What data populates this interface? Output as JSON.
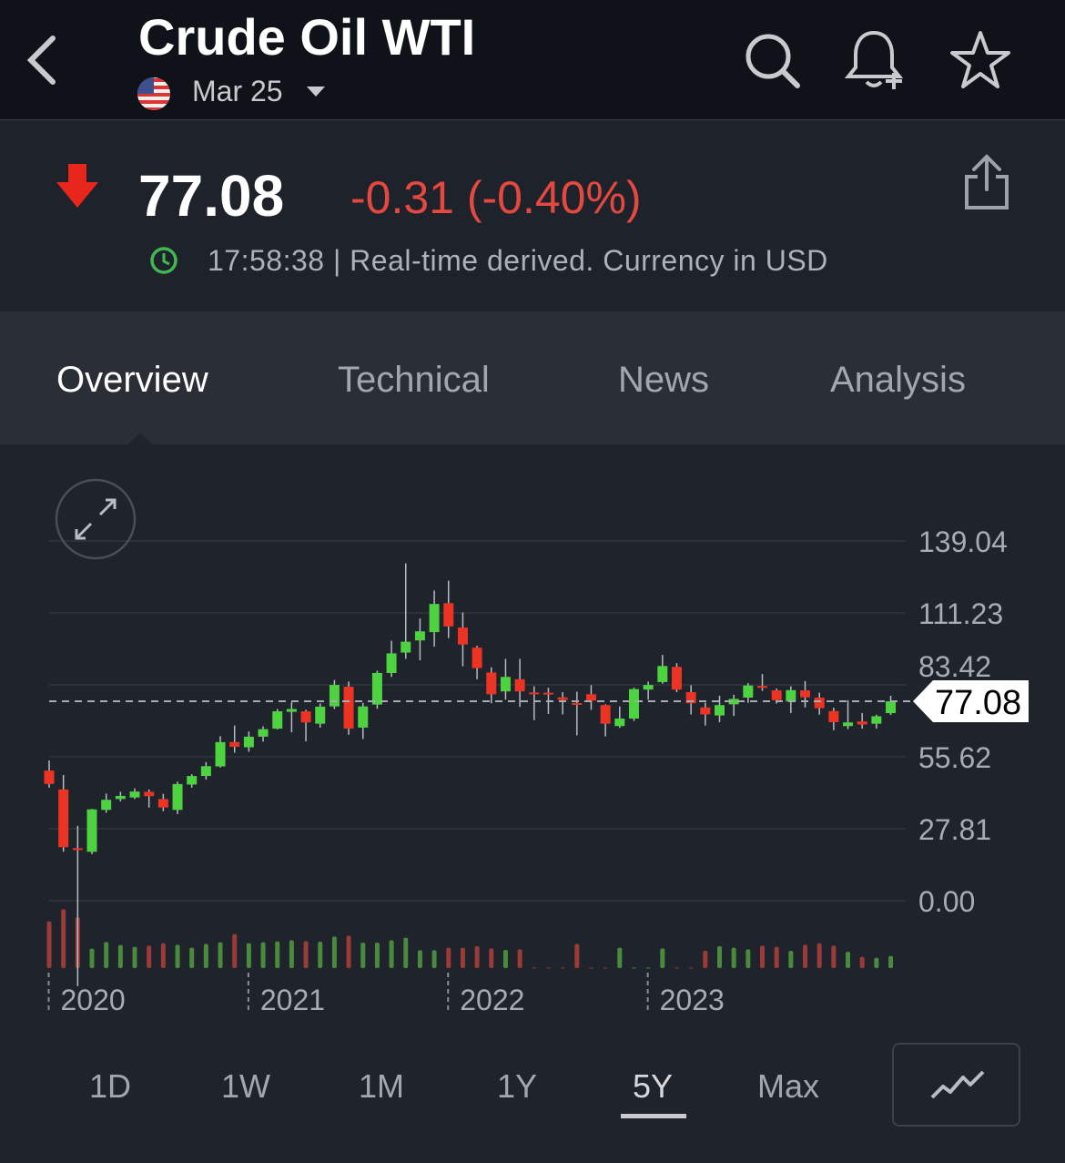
{
  "header": {
    "title": "Crude Oil WTI",
    "contract": "Mar 25",
    "flag_icon": "us-flag-icon",
    "back_icon": "chevron-left-icon",
    "search_icon": "search-icon",
    "alert_icon": "bell-plus-icon",
    "watchlist_icon": "star-icon"
  },
  "quote": {
    "price": "77.08",
    "change": "-0.31 (-0.40%)",
    "direction": "down",
    "time_info": "17:58:38 | Real-time derived. Currency in USD",
    "colors": {
      "down": "#e5483f",
      "clock": "#3fb950"
    }
  },
  "tabs": [
    {
      "label": "Overview",
      "active": true
    },
    {
      "label": "Technical"
    },
    {
      "label": "News"
    },
    {
      "label": "Analysis"
    }
  ],
  "timeframes": [
    {
      "label": "1D"
    },
    {
      "label": "1W"
    },
    {
      "label": "1M"
    },
    {
      "label": "1Y"
    },
    {
      "label": "5Y",
      "active": true
    },
    {
      "label": "Max"
    }
  ],
  "chart_type_icon": "line-chart-icon",
  "expand_icon": "expand-icon",
  "chart_data": {
    "type": "candlestick",
    "y_ticks": [
      "139.04",
      "111.23",
      "83.42",
      "55.62",
      "27.81",
      "0.00"
    ],
    "y_tick_values": [
      139.04,
      111.23,
      83.42,
      55.62,
      27.81,
      0
    ],
    "ylim": [
      0,
      139.04
    ],
    "current_price": 77.08,
    "current_price_label": "77.08",
    "x_ticks": [
      {
        "label": "2020",
        "index": 0
      },
      {
        "label": "2021",
        "index": 14
      },
      {
        "label": "2022",
        "index": 28
      },
      {
        "label": "2023",
        "index": 42
      }
    ],
    "colors": {
      "up": "#4cd33f",
      "down": "#ec3324",
      "vol_up": "#4a8a3c",
      "vol_down": "#9a3b38"
    },
    "grid": true,
    "ohlc": [
      [
        50.3,
        54.2,
        43.7,
        45.1
      ],
      [
        43.0,
        48.6,
        18.9,
        20.7
      ],
      [
        20.3,
        28.9,
        -33,
        19.9
      ],
      [
        18.9,
        35.5,
        18.0,
        35.3
      ],
      [
        35.1,
        41.4,
        34.0,
        39.0
      ],
      [
        39.3,
        42.1,
        38.4,
        40.5
      ],
      [
        39.9,
        43.4,
        39.3,
        42.2
      ],
      [
        42.1,
        43.0,
        36.0,
        40.4
      ],
      [
        39.3,
        41.3,
        34.6,
        36.0
      ],
      [
        35.1,
        46.0,
        33.5,
        45.1
      ],
      [
        44.9,
        48.9,
        43.7,
        48.2
      ],
      [
        48.2,
        53.6,
        46.8,
        52.0
      ],
      [
        51.9,
        63.6,
        51.5,
        61.3
      ],
      [
        61.3,
        67.7,
        57.2,
        59.5
      ],
      [
        59.3,
        65.4,
        57.6,
        63.4
      ],
      [
        63.4,
        67.4,
        61.5,
        66.3
      ],
      [
        66.5,
        74.1,
        66.2,
        73.2
      ],
      [
        73.0,
        76.7,
        65.1,
        74.1
      ],
      [
        73.2,
        73.8,
        61.6,
        68.9
      ],
      [
        68.4,
        76.2,
        66.9,
        75.0
      ],
      [
        75.1,
        85.3,
        74.1,
        83.4
      ],
      [
        82.7,
        84.7,
        64.1,
        66.5
      ],
      [
        66.9,
        76.5,
        62.5,
        75.1
      ],
      [
        75.8,
        88.9,
        74.2,
        88.0
      ],
      [
        88.0,
        100.5,
        86.5,
        95.6
      ],
      [
        95.9,
        130.4,
        93.5,
        100.1
      ],
      [
        100.6,
        109.1,
        92.9,
        104.1
      ],
      [
        103.8,
        119.9,
        98.2,
        114.7
      ],
      [
        115.0,
        123.7,
        101.5,
        106.0
      ],
      [
        105.6,
        111.4,
        90.6,
        99.0
      ],
      [
        97.8,
        98.5,
        85.6,
        89.9
      ],
      [
        88.2,
        90.2,
        76.3,
        79.8
      ],
      [
        80.9,
        93.5,
        77.7,
        86.5
      ],
      [
        85.6,
        93.5,
        74.9,
        80.9
      ],
      [
        80.5,
        82.9,
        69.8,
        80.1
      ],
      [
        80.4,
        82.3,
        72.2,
        80.0
      ],
      [
        78.6,
        80.6,
        72.0,
        77.6
      ],
      [
        76.4,
        80.8,
        63.9,
        76.0
      ],
      [
        79.8,
        83.3,
        73.8,
        77.3
      ],
      [
        75.6,
        75.9,
        63.5,
        68.4
      ],
      [
        67.5,
        75.1,
        66.8,
        70.4
      ],
      [
        70.4,
        82.3,
        69.5,
        81.8
      ],
      [
        81.6,
        84.7,
        77.7,
        83.4
      ],
      [
        84.5,
        95.0,
        83.9,
        90.7
      ],
      [
        90.4,
        91.8,
        80.6,
        81.6
      ],
      [
        80.6,
        83.3,
        72.0,
        76.3
      ],
      [
        74.7,
        76.5,
        67.7,
        72.0
      ],
      [
        71.6,
        79.2,
        69.0,
        75.6
      ],
      [
        75.9,
        79.6,
        71.4,
        78.0
      ],
      [
        78.5,
        84.1,
        76.5,
        83.2
      ],
      [
        83.0,
        87.6,
        81.1,
        82.6
      ],
      [
        81.3,
        82.0,
        76.2,
        77.5
      ],
      [
        77.0,
        82.9,
        72.5,
        81.4
      ],
      [
        81.3,
        84.9,
        74.7,
        78.6
      ],
      [
        78.5,
        80.4,
        71.9,
        74.4
      ],
      [
        73.3,
        74.6,
        65.9,
        69.0
      ],
      [
        67.5,
        77.5,
        66.3,
        68.9
      ],
      [
        69.3,
        72.5,
        66.5,
        68.1
      ],
      [
        68.4,
        71.9,
        66.5,
        71.3
      ],
      [
        72.5,
        79.2,
        71.8,
        77.08
      ]
    ],
    "volume_relative": [
      154,
      194,
      167,
      64,
      86,
      76,
      70,
      74,
      82,
      77,
      67,
      80,
      85,
      112,
      82,
      85,
      88,
      92,
      89,
      87,
      104,
      107,
      84,
      84,
      92,
      100,
      59,
      59,
      67,
      67,
      72,
      65,
      60,
      62,
      2,
      2,
      2,
      80,
      2,
      2,
      67,
      2,
      2,
      65,
      2,
      2,
      57,
      72,
      67,
      62,
      74,
      70,
      57,
      77,
      82,
      74,
      54,
      37,
      34,
      40
    ]
  }
}
